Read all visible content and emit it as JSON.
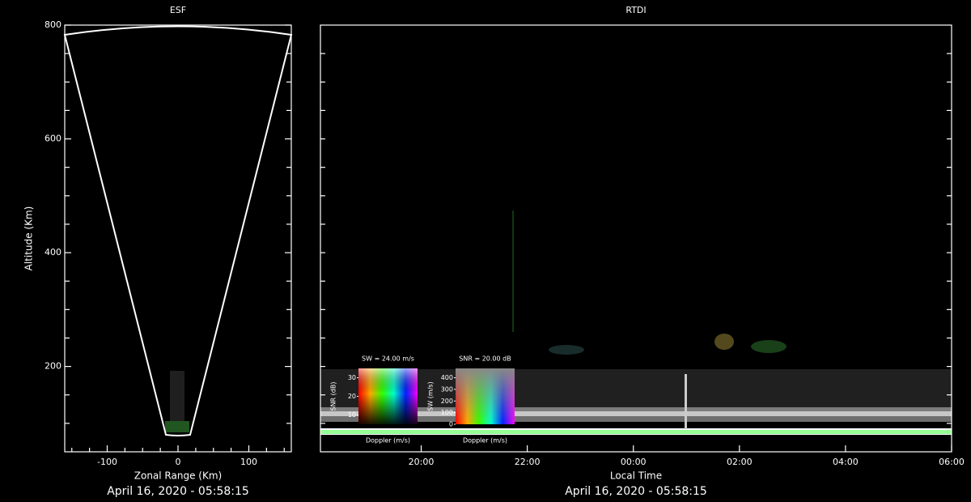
{
  "chart_data": [
    {
      "type": "sector",
      "title": "ESF",
      "x_label": "Zonal Range (Km)",
      "y_label": "Altitude (Km)",
      "xlim": [
        -160,
        160
      ],
      "ylim": [
        50,
        800
      ],
      "xticks": [
        -100,
        0,
        100
      ],
      "xticks_minor": [
        -150,
        -125,
        -75,
        -50,
        -25,
        25,
        50,
        75,
        125,
        150
      ],
      "yticks": [
        200,
        400,
        600,
        800
      ],
      "yticks_minor": [
        100,
        150,
        250,
        300,
        350,
        450,
        500,
        550,
        650,
        700,
        750
      ],
      "footer": "April 16, 2020 - 05:58:15"
    },
    {
      "type": "rtdi",
      "title": "RTDI",
      "x_label": "Local Time",
      "xlim": [
        18.1,
        30
      ],
      "ylim": [
        50,
        800
      ],
      "xticks": [
        {
          "value": 20,
          "label": "20:00"
        },
        {
          "value": 22,
          "label": "22:00"
        },
        {
          "value": 24,
          "label": "00:00"
        },
        {
          "value": 26,
          "label": "02:00"
        },
        {
          "value": 28,
          "label": "04:00"
        },
        {
          "value": 30,
          "label": "06:00"
        }
      ],
      "yticks_minor": [
        100,
        150,
        200,
        250,
        300,
        350,
        400,
        450,
        500,
        550,
        600,
        650,
        700,
        750
      ],
      "insets": [
        {
          "title": "SW = 24.00 m/s",
          "y_label": "SNR (dB)",
          "x_label": "Doppler (m/s)",
          "ylim": [
            5,
            35
          ],
          "yticks": [
            10,
            20,
            30
          ]
        },
        {
          "title": "SNR = 20.00 dB",
          "y_label": "SW (m/s)",
          "x_label": "Doppler (m/s)",
          "ylim": [
            0,
            480
          ],
          "yticks": [
            0,
            100,
            200,
            300,
            400
          ]
        }
      ],
      "footer": "April 16, 2020 - 05:58:15"
    }
  ]
}
